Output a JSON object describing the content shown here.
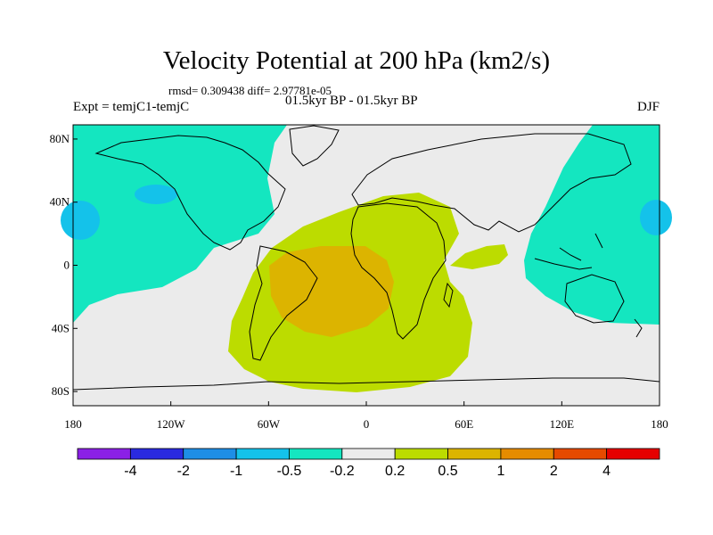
{
  "title": "Velocity Potential at 200 hPa (km2/s)",
  "stats": "rmsd= 0.309438 diff= 2.97781e-05",
  "period": "01.5kyr BP - 01.5kyr BP",
  "experiment": "Expt = temjC1-temjC",
  "season": "DJF",
  "axes": {
    "lat_ticks": [
      "80N",
      "40N",
      "0",
      "40S",
      "80S"
    ],
    "lon_ticks": [
      "180",
      "120W",
      "60W",
      "0",
      "60E",
      "120E",
      "180"
    ]
  },
  "colorbar": {
    "colors": [
      "#8b20e6",
      "#2a2ae0",
      "#1e8ee6",
      "#14c2ea",
      "#14e6c0",
      "#ebebeb",
      "#bcdc00",
      "#dcb400",
      "#e68c00",
      "#e64a00",
      "#e60000"
    ],
    "labels": [
      "-4",
      "-2",
      "-1",
      "-0.5",
      "-0.2",
      "0.2",
      "0.5",
      "1",
      "2",
      "4"
    ]
  },
  "colors": {
    "background": "#ebebeb",
    "negative": "#14e6c0",
    "negative_core": "#14c2ea",
    "positive": "#bcdc00",
    "positive_core": "#dcb400"
  }
}
